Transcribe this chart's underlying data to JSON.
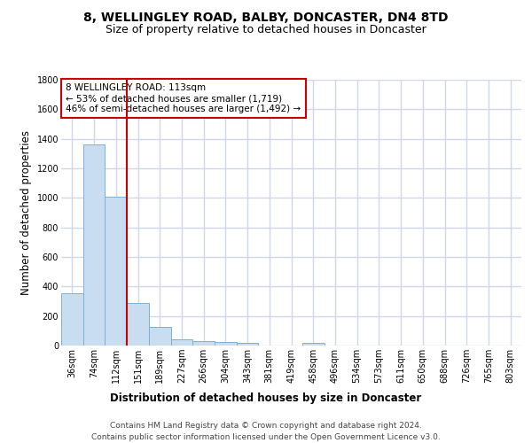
{
  "title1": "8, WELLINGLEY ROAD, BALBY, DONCASTER, DN4 8TD",
  "title2": "Size of property relative to detached houses in Doncaster",
  "xlabel": "Distribution of detached houses by size in Doncaster",
  "ylabel": "Number of detached properties",
  "footer1": "Contains HM Land Registry data © Crown copyright and database right 2024.",
  "footer2": "Contains public sector information licensed under the Open Government Licence v3.0.",
  "bar_labels": [
    "36sqm",
    "74sqm",
    "112sqm",
    "151sqm",
    "189sqm",
    "227sqm",
    "266sqm",
    "304sqm",
    "343sqm",
    "381sqm",
    "419sqm",
    "458sqm",
    "496sqm",
    "534sqm",
    "573sqm",
    "611sqm",
    "650sqm",
    "688sqm",
    "726sqm",
    "765sqm",
    "803sqm"
  ],
  "bar_values": [
    355,
    1360,
    1010,
    290,
    125,
    40,
    33,
    22,
    16,
    0,
    0,
    18,
    0,
    0,
    0,
    0,
    0,
    0,
    0,
    0,
    0
  ],
  "bar_color": "#c8ddf0",
  "bar_edge_color": "#7ab0d8",
  "highlight_bar_index": 2,
  "highlight_line_color": "#cc0000",
  "ylim_max": 1800,
  "annotation_line1": "8 WELLINGLEY ROAD: 113sqm",
  "annotation_line2": "← 53% of detached houses are smaller (1,719)",
  "annotation_line3": "46% of semi-detached houses are larger (1,492) →",
  "annotation_box_edgecolor": "#cc0000",
  "plot_bg_color": "#ffffff",
  "grid_color": "#d0d8e8",
  "title1_fontsize": 10,
  "title2_fontsize": 9,
  "axis_label_fontsize": 8.5,
  "tick_fontsize": 7,
  "ann_fontsize": 7.5,
  "footer_fontsize": 6.5
}
